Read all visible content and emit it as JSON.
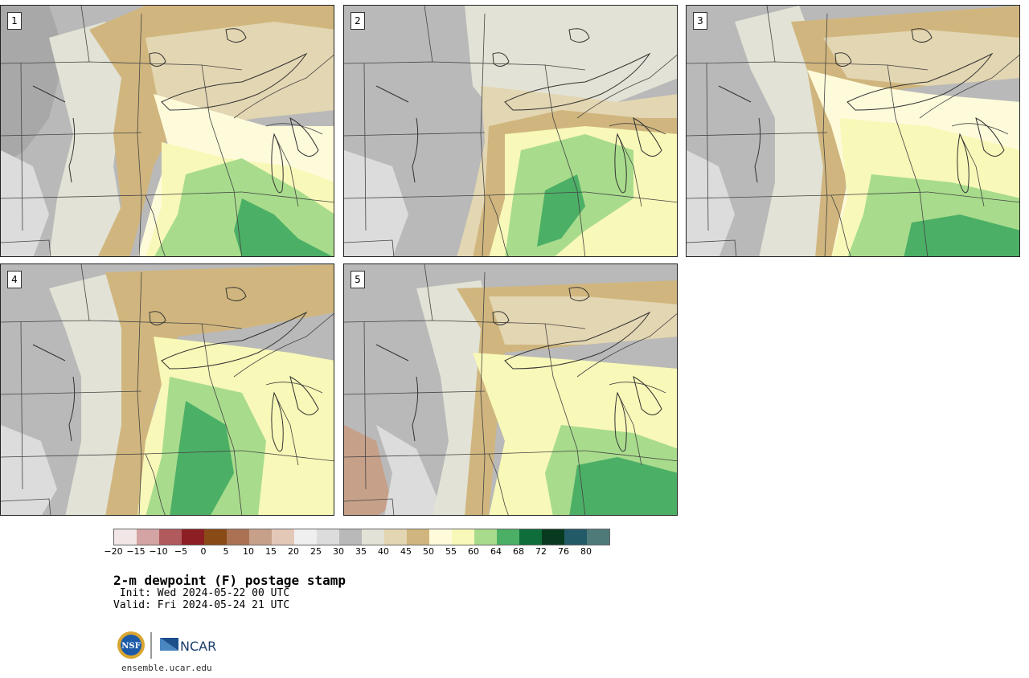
{
  "title": "2-m dewpoint (F) postage stamp",
  "init": " Init: Wed 2024-05-22 00 UTC",
  "valid": "Valid: Fri 2024-05-24 21 UTC",
  "url": "ensemble.ucar.edu",
  "logos": {
    "nsf": "NSF",
    "ncar": "NCAR"
  },
  "panels": [
    {
      "number": "1"
    },
    {
      "number": "2"
    },
    {
      "number": "3"
    },
    {
      "number": "4"
    },
    {
      "number": "5"
    }
  ],
  "colorbar": {
    "colors": [
      "#f2e6e6",
      "#d4a3a3",
      "#b05a5e",
      "#8c1e24",
      "#8a4a16",
      "#aa7252",
      "#c7a08a",
      "#e3c8b8",
      "#efefef",
      "#dcdcdc",
      "#b9b9b9",
      "#e2e2d6",
      "#e3d6b2",
      "#d0b67e",
      "#fefbdb",
      "#f8f8b8",
      "#a8dc8c",
      "#4caf66",
      "#0e6d3a",
      "#083a20",
      "#225a68",
      "#4f7a7a"
    ],
    "ticks": [
      "−20",
      "−15",
      "−10",
      "−5",
      "0",
      "5",
      "10",
      "15",
      "20",
      "25",
      "30",
      "35",
      "40",
      "45",
      "50",
      "55",
      "60",
      "64",
      "68",
      "72",
      "76",
      "80"
    ]
  }
}
